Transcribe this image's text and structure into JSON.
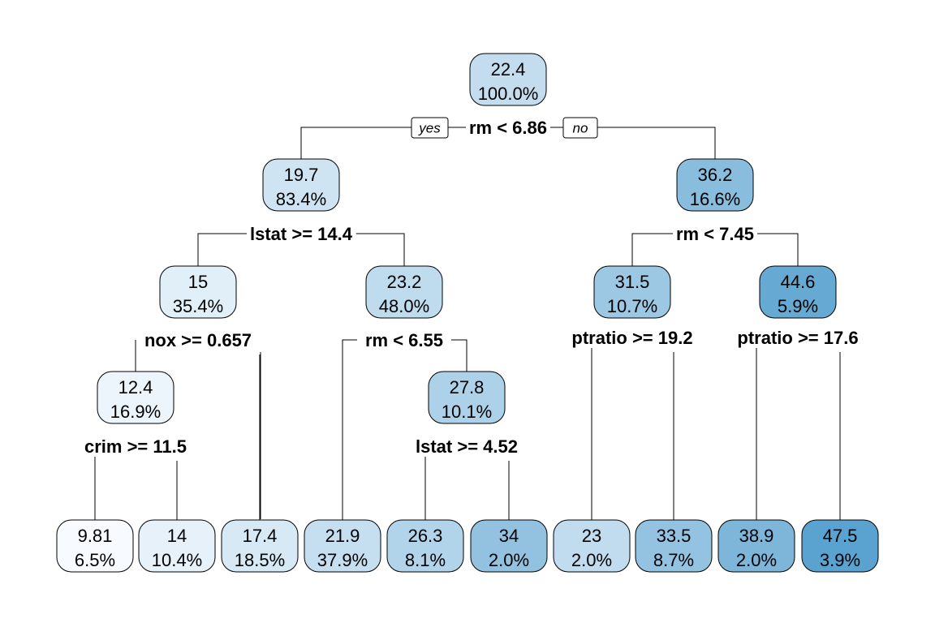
{
  "tree": {
    "branch_labels": {
      "yes": "yes",
      "no": "no"
    },
    "color_scale": {
      "low": "#f7fbff",
      "high": "#5aa2cf"
    },
    "nodes": [
      {
        "id": "root",
        "value": "22.4",
        "percent": "100.0%",
        "split": "rm < 6.86"
      },
      {
        "id": "n2",
        "parent": "root",
        "value": "19.7",
        "percent": "83.4%",
        "split": "lstat >= 14.4"
      },
      {
        "id": "n3",
        "parent": "root",
        "value": "36.2",
        "percent": "16.6%",
        "split": "rm < 7.45"
      },
      {
        "id": "n4",
        "parent": "n2",
        "value": "15",
        "percent": "35.4%",
        "split": "nox >= 0.657"
      },
      {
        "id": "n5",
        "parent": "n2",
        "value": "23.2",
        "percent": "48.0%",
        "split": "rm < 6.55"
      },
      {
        "id": "n6",
        "parent": "n3",
        "value": "31.5",
        "percent": "10.7%",
        "split": "ptratio >= 19.2"
      },
      {
        "id": "n7",
        "parent": "n3",
        "value": "44.6",
        "percent": "5.9%",
        "split": "ptratio >= 17.6"
      },
      {
        "id": "n8",
        "parent": "n4",
        "value": "12.4",
        "percent": "16.9%",
        "split": "crim >= 11.5"
      },
      {
        "id": "n11",
        "parent": "n5",
        "value": "27.8",
        "percent": "10.1%",
        "split": "lstat >= 4.52"
      },
      {
        "id": "l1",
        "parent": "n8",
        "value": "9.81",
        "percent": "6.5%"
      },
      {
        "id": "l2",
        "parent": "n8",
        "value": "14",
        "percent": "10.4%"
      },
      {
        "id": "l3",
        "parent": "n4",
        "value": "17.4",
        "percent": "18.5%"
      },
      {
        "id": "l4",
        "parent": "n5",
        "value": "21.9",
        "percent": "37.9%"
      },
      {
        "id": "l5",
        "parent": "n11",
        "value": "26.3",
        "percent": "8.1%"
      },
      {
        "id": "l6",
        "parent": "n11",
        "value": "34",
        "percent": "2.0%"
      },
      {
        "id": "l7",
        "parent": "n6",
        "value": "23",
        "percent": "2.0%"
      },
      {
        "id": "l8",
        "parent": "n6",
        "value": "33.5",
        "percent": "8.7%"
      },
      {
        "id": "l9",
        "parent": "n7",
        "value": "38.9",
        "percent": "2.0%"
      },
      {
        "id": "l10",
        "parent": "n7",
        "value": "47.5",
        "percent": "3.9%"
      }
    ]
  }
}
